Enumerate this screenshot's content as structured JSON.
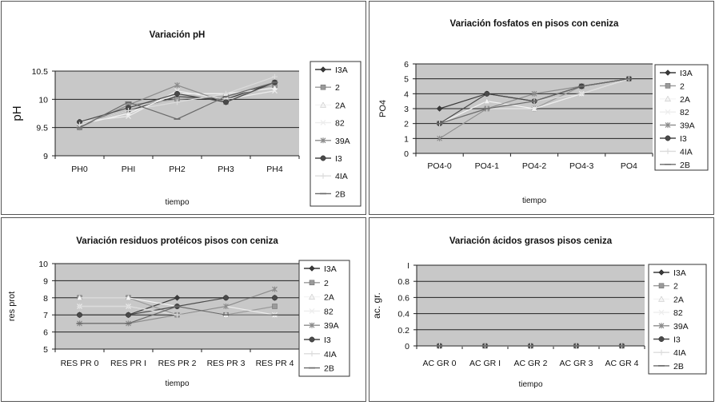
{
  "chart_data": [
    {
      "type": "line",
      "title": "Variación pH",
      "xlabel": "tiempo",
      "ylabel": "pH",
      "categories": [
        "PH0",
        "PHI",
        "PH2",
        "PH3",
        "PH4"
      ],
      "ylim": [
        9,
        10.5
      ],
      "yticks": [
        "9",
        "9.5",
        "10",
        "10.5"
      ],
      "grid": true,
      "legend": "right",
      "series": [
        {
          "name": "13A",
          "values": [
            9.55,
            9.8,
            10.05,
            10.0,
            10.3
          ]
        },
        {
          "name": "2",
          "values": [
            9.5,
            9.9,
            10.0,
            10.05,
            10.25
          ]
        },
        {
          "name": "2A",
          "values": [
            9.55,
            9.75,
            10.1,
            10.1,
            10.2
          ]
        },
        {
          "name": "82",
          "values": [
            9.6,
            9.7,
            10.15,
            10.0,
            10.15
          ]
        },
        {
          "name": "39A",
          "values": [
            9.5,
            9.9,
            10.25,
            9.95,
            10.3
          ]
        },
        {
          "name": "13",
          "values": [
            9.6,
            9.85,
            10.1,
            9.95,
            10.3
          ]
        },
        {
          "name": "41A",
          "values": [
            9.55,
            9.8,
            9.95,
            10.1,
            10.4
          ]
        },
        {
          "name": "2B",
          "values": [
            9.5,
            9.95,
            9.65,
            10.05,
            10.3
          ]
        }
      ]
    },
    {
      "type": "line",
      "title": "Variación fosfatos en pisos con ceniza",
      "xlabel": "tiempo",
      "ylabel": "PO4",
      "categories": [
        "PO4-0",
        "PO4-1",
        "PO4-2",
        "PO4-3",
        "PO4"
      ],
      "ylim": [
        0,
        6
      ],
      "yticks": [
        "0",
        "1",
        "2",
        "3",
        "4",
        "5",
        "6"
      ],
      "grid": true,
      "legend": "right",
      "series": [
        {
          "name": "13A",
          "values": [
            3,
            4,
            3.5,
            4.5,
            5
          ]
        },
        {
          "name": "2",
          "values": [
            2,
            3,
            3,
            4.5,
            5
          ]
        },
        {
          "name": "2A",
          "values": [
            2,
            3.5,
            3,
            4,
            5
          ]
        },
        {
          "name": "82",
          "values": [
            1,
            3,
            3,
            4,
            5
          ]
        },
        {
          "name": "39A",
          "values": [
            1,
            3,
            4,
            4.5,
            5
          ]
        },
        {
          "name": "13",
          "values": [
            2,
            4,
            3.5,
            4.5,
            5
          ]
        },
        {
          "name": "41A",
          "values": [
            2,
            3,
            3.5,
            4,
            5
          ]
        },
        {
          "name": "2B",
          "values": [
            2,
            3,
            3.5,
            4.5,
            5
          ]
        }
      ]
    },
    {
      "type": "line",
      "title": "Variación residuos protéicos pisos con ceniza",
      "xlabel": "tiempo",
      "ylabel": "res prot",
      "categories": [
        "RES PR 0",
        "RES PR I",
        "RES PR 2",
        "RES PR 3",
        "RES PR 4"
      ],
      "ylim": [
        5,
        10
      ],
      "yticks": [
        "5",
        "6",
        "7",
        "8",
        "9",
        "10"
      ],
      "grid": true,
      "legend": "right",
      "series": [
        {
          "name": "13A",
          "values": [
            7,
            7,
            8,
            8,
            8
          ]
        },
        {
          "name": "2",
          "values": [
            8,
            8,
            7,
            7,
            7.5
          ]
        },
        {
          "name": "2A",
          "values": [
            8,
            8,
            7.5,
            7,
            7
          ]
        },
        {
          "name": "82",
          "values": [
            7.5,
            7.5,
            7,
            7.5,
            7
          ]
        },
        {
          "name": "39A",
          "values": [
            6.5,
            6.5,
            7,
            7.5,
            8.5
          ]
        },
        {
          "name": "13",
          "values": [
            7,
            7,
            7.5,
            8,
            8
          ]
        },
        {
          "name": "41A",
          "values": [
            7.5,
            7.5,
            7,
            7,
            7
          ]
        },
        {
          "name": "2B",
          "values": [
            6.5,
            6.5,
            7.5,
            7,
            7
          ]
        }
      ]
    },
    {
      "type": "line",
      "title": "Variación ácidos grasos pisos ceniza",
      "xlabel": "",
      "xlabel_text": "tiempo",
      "ylabel": "ac. gr.",
      "categories": [
        "AC GR 0",
        "AC GR I",
        "AC GR 2",
        "AC GR 3",
        "AC GR 4"
      ],
      "ylim": [
        0,
        1
      ],
      "yticks": [
        "0",
        "0.2",
        "0.4",
        "0.6",
        "0.8",
        "I"
      ],
      "grid": true,
      "legend": "right",
      "series": [
        {
          "name": "13A",
          "values": [
            0,
            0,
            0,
            0,
            0
          ]
        },
        {
          "name": "2",
          "values": [
            0,
            0,
            0,
            0,
            0
          ]
        },
        {
          "name": "2A",
          "values": [
            0,
            0,
            0,
            0,
            0
          ]
        },
        {
          "name": "82",
          "values": [
            0,
            0,
            0,
            0,
            0
          ]
        },
        {
          "name": "39A",
          "values": [
            0,
            0,
            0,
            0,
            0
          ]
        },
        {
          "name": "13",
          "values": [
            0,
            0,
            0,
            0,
            0
          ]
        },
        {
          "name": "41A",
          "values": [
            0,
            0,
            0,
            0,
            0
          ]
        },
        {
          "name": "2B",
          "values": [
            0,
            0,
            0,
            0,
            0
          ]
        }
      ]
    }
  ],
  "legend_labels": [
    [
      "I3A",
      "2",
      "2A",
      "82",
      "39A",
      "I3",
      "4IA",
      "2B"
    ],
    [
      "I3A",
      "2",
      "2A",
      "82",
      "39A",
      "I3",
      "4IA",
      "2B"
    ],
    [
      "I3A",
      "2",
      "2A",
      "82",
      "39A",
      "I3",
      "4IA",
      "2B"
    ],
    [
      "I3A",
      "2",
      "2A",
      "82",
      "39A",
      "I3",
      "4IA",
      "2B"
    ]
  ],
  "series_colors": [
    "#3a3a3a",
    "#9a9a9a",
    "#f4f4f4",
    "#ededed",
    "#8c8c8c",
    "#4a4a4a",
    "#dcdcdc",
    "#6a6a6a"
  ],
  "marker_shapes": [
    "diamond",
    "square",
    "triangle",
    "x",
    "star",
    "circle",
    "plus",
    "dash"
  ],
  "plot_bg": "#c8c8c8"
}
